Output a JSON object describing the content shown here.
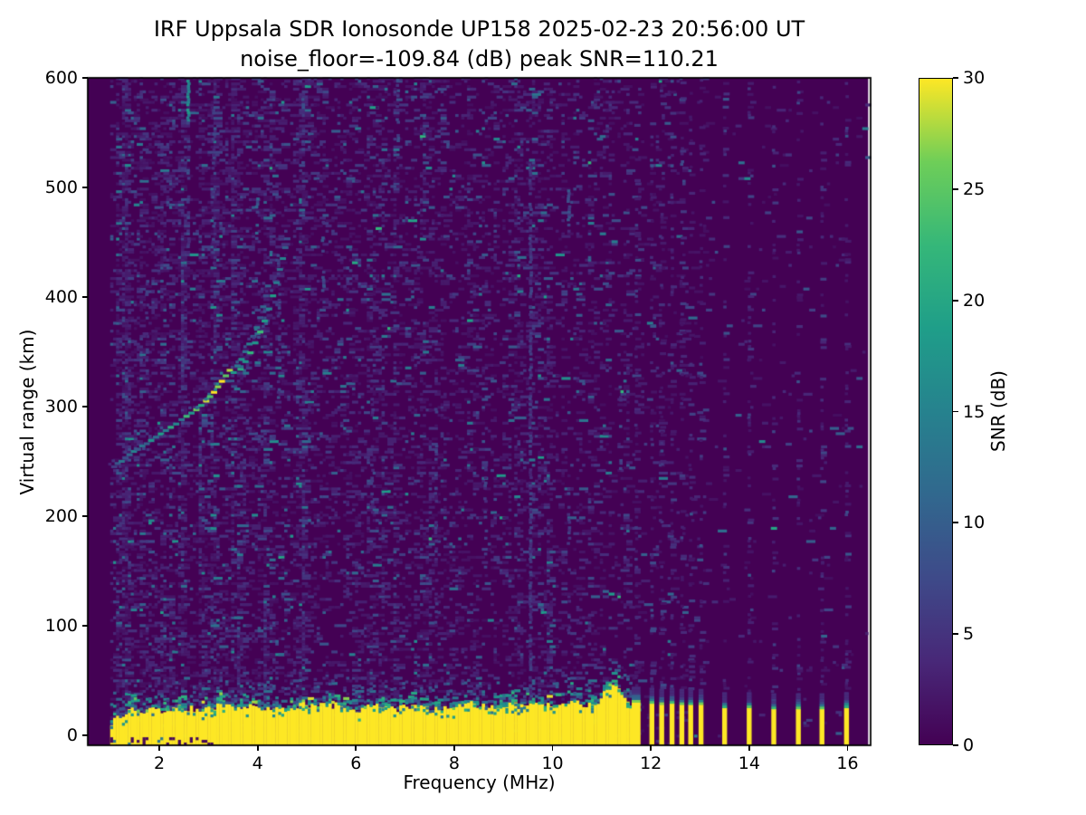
{
  "figure": {
    "title_line1": "IRF Uppsala SDR Ionosonde UP158 2025-02-23 20:56:00  UT",
    "title_line2": "noise_floor=-109.84 (dB) peak SNR=110.21",
    "xlabel": "Frequency (MHz)",
    "ylabel": "Virtual range (km)",
    "colorbar_label": "SNR (dB)"
  },
  "chart_data": {
    "type": "heatmap",
    "title": "IRF Uppsala SDR Ionosonde UP158 2025-02-23 20:56:00  UT",
    "subtitle": "noise_floor=-109.84 (dB) peak SNR=110.21",
    "xlabel": "Frequency (MHz)",
    "ylabel": "Virtual range (km)",
    "x_axis": {
      "range": [
        0.545,
        16.47
      ],
      "ticks": [
        2,
        4,
        6,
        8,
        10,
        12,
        14,
        16
      ]
    },
    "y_axis": {
      "range": [
        -9.1,
        600
      ],
      "ticks": [
        0,
        100,
        200,
        300,
        400,
        500,
        600
      ]
    },
    "colorbar": {
      "label": "SNR (dB)",
      "range": [
        0,
        30
      ],
      "ticks": [
        0,
        5,
        10,
        15,
        20,
        25,
        30
      ],
      "colormap": "viridis",
      "stops": [
        "#440154",
        "#482878",
        "#3e4a89",
        "#31688e",
        "#26828e",
        "#1f9e89",
        "#35b779",
        "#6ece58",
        "#fde725"
      ]
    },
    "data_extent": {
      "f_min": 1.0,
      "f_max": 16.42
    },
    "noise": {
      "seed": 1337,
      "cell_mhz": 0.06,
      "cell_km": 2.4,
      "snr_floor": 1.2,
      "snr_scale": 2.2,
      "region_density": [
        [
          1.0,
          2.5,
          0.32
        ],
        [
          2.5,
          5.0,
          0.26
        ],
        [
          5.0,
          8.0,
          0.21
        ],
        [
          8.0,
          10.0,
          0.17
        ],
        [
          10.0,
          11.62,
          0.13
        ],
        [
          11.62,
          13.1,
          0.05
        ],
        [
          13.1,
          16.42,
          0.012
        ]
      ]
    },
    "streaks": [
      {
        "f": 2.56,
        "r0": 560,
        "r1": 596,
        "density": 0.85,
        "snr": 16
      },
      {
        "f": 2.56,
        "r0": 440,
        "r1": 560,
        "density": 0.3,
        "snr": 6
      },
      {
        "f": 1.72,
        "r0": 250,
        "r1": 430,
        "density": 0.3,
        "snr": 5
      },
      {
        "f": 3.07,
        "r0": 430,
        "r1": 590,
        "density": 0.35,
        "snr": 6
      },
      {
        "f": 3.96,
        "r0": 450,
        "r1": 500,
        "density": 0.5,
        "snr": 9
      },
      {
        "f": 4.4,
        "r0": 300,
        "r1": 440,
        "density": 0.3,
        "snr": 6
      },
      {
        "f": 4.9,
        "r0": 500,
        "r1": 580,
        "density": 0.3,
        "snr": 6
      },
      {
        "f": 5.3,
        "r0": 400,
        "r1": 470,
        "density": 0.35,
        "snr": 7
      },
      {
        "f": 6.3,
        "r0": 200,
        "r1": 330,
        "density": 0.25,
        "snr": 5
      },
      {
        "f": 6.82,
        "r0": 520,
        "r1": 598,
        "density": 0.35,
        "snr": 6
      },
      {
        "f": 7.6,
        "r0": 90,
        "r1": 300,
        "density": 0.25,
        "snr": 5
      },
      {
        "f": 8.6,
        "r0": 150,
        "r1": 260,
        "density": 0.3,
        "snr": 5
      },
      {
        "f": 9.52,
        "r0": 30,
        "r1": 520,
        "density": 0.75,
        "snr": 5
      },
      {
        "f": 10.3,
        "r0": 455,
        "r1": 500,
        "density": 0.5,
        "snr": 7
      },
      {
        "f": 10.3,
        "r0": 90,
        "r1": 220,
        "density": 0.3,
        "snr": 5
      },
      {
        "f": 11.35,
        "r0": 240,
        "r1": 330,
        "density": 0.35,
        "snr": 6
      }
    ],
    "echo_trace": {
      "main": [
        [
          1.05,
          244,
          6
        ],
        [
          1.12,
          247,
          9
        ],
        [
          1.2,
          249,
          13
        ],
        [
          1.28,
          252,
          8
        ],
        [
          1.36,
          255,
          11
        ],
        [
          1.45,
          258,
          15
        ],
        [
          1.53,
          260,
          9
        ],
        [
          1.62,
          263,
          13
        ],
        [
          1.71,
          265,
          10
        ],
        [
          1.8,
          268,
          17
        ],
        [
          1.9,
          271,
          12
        ],
        [
          2.0,
          274,
          19
        ],
        [
          2.1,
          277,
          14
        ],
        [
          2.2,
          280,
          21
        ],
        [
          2.31,
          283,
          16
        ],
        [
          2.42,
          287,
          13
        ],
        [
          2.52,
          290,
          23
        ],
        [
          2.62,
          293,
          18
        ],
        [
          2.72,
          296,
          26
        ],
        [
          2.82,
          300,
          20
        ],
        [
          2.92,
          304,
          29
        ],
        [
          3.0,
          308,
          24
        ],
        [
          3.08,
          312,
          30
        ],
        [
          3.16,
          317,
          27
        ],
        [
          3.24,
          322,
          30
        ],
        [
          3.32,
          327,
          25
        ],
        [
          3.4,
          332,
          28
        ]
      ],
      "branch_o": [
        [
          3.48,
          330,
          18
        ],
        [
          3.56,
          336,
          14
        ],
        [
          3.64,
          342,
          17
        ],
        [
          3.72,
          349,
          12
        ],
        [
          3.8,
          356,
          15
        ],
        [
          3.88,
          363,
          10
        ],
        [
          3.95,
          371,
          13
        ],
        [
          4.02,
          380,
          9
        ],
        [
          4.08,
          390,
          11
        ],
        [
          4.14,
          400,
          8
        ],
        [
          4.18,
          409,
          10
        ]
      ],
      "branch_x": [
        [
          3.62,
          333,
          21
        ],
        [
          3.72,
          340,
          17
        ],
        [
          3.82,
          348,
          22
        ],
        [
          3.92,
          357,
          18
        ],
        [
          4.02,
          367,
          23
        ],
        [
          4.11,
          377,
          19
        ],
        [
          4.2,
          388,
          15
        ],
        [
          4.28,
          400,
          19
        ],
        [
          4.35,
          412,
          14
        ],
        [
          4.42,
          424,
          12
        ],
        [
          4.48,
          434,
          15
        ],
        [
          4.53,
          444,
          10
        ],
        [
          4.57,
          452,
          8
        ]
      ]
    },
    "ground_band": {
      "f_start": 1.0,
      "f_end": 11.62,
      "snr": 30,
      "jitter_km": 3.5,
      "top_profile": [
        [
          1.0,
          10
        ],
        [
          1.1,
          16
        ],
        [
          1.3,
          21
        ],
        [
          1.6,
          24
        ],
        [
          2.0,
          22
        ],
        [
          2.4,
          26
        ],
        [
          2.8,
          23
        ],
        [
          3.2,
          27
        ],
        [
          3.6,
          24
        ],
        [
          4.0,
          27
        ],
        [
          4.4,
          24
        ],
        [
          4.8,
          28
        ],
        [
          5.2,
          25
        ],
        [
          5.6,
          27
        ],
        [
          6.0,
          24
        ],
        [
          6.4,
          26
        ],
        [
          6.8,
          24
        ],
        [
          7.2,
          26
        ],
        [
          7.6,
          23
        ],
        [
          8.0,
          27
        ],
        [
          8.4,
          28
        ],
        [
          8.8,
          25
        ],
        [
          9.2,
          28
        ],
        [
          9.6,
          26
        ],
        [
          10.0,
          28
        ],
        [
          10.4,
          29
        ],
        [
          10.7,
          27
        ],
        [
          10.9,
          32
        ],
        [
          11.1,
          44
        ],
        [
          11.2,
          49
        ],
        [
          11.3,
          43
        ],
        [
          11.45,
          33
        ],
        [
          11.55,
          28
        ],
        [
          11.62,
          26
        ]
      ]
    },
    "pulse_bars": {
      "default_width_mhz": 0.1,
      "cap_extra_km": 7,
      "dot_column_density": 0.2,
      "bars": [
        {
          "f": 11.7,
          "top_km": 30,
          "width_mhz": 0.18
        },
        {
          "f": 12.02,
          "top_km": 29
        },
        {
          "f": 12.22,
          "top_km": 28
        },
        {
          "f": 12.43,
          "top_km": 29
        },
        {
          "f": 12.63,
          "top_km": 28
        },
        {
          "f": 12.81,
          "top_km": 28
        },
        {
          "f": 13.02,
          "top_km": 28
        },
        {
          "f": 13.5,
          "top_km": 25
        },
        {
          "f": 14.0,
          "top_km": 25
        },
        {
          "f": 14.5,
          "top_km": 24
        },
        {
          "f": 15.0,
          "top_km": 24
        },
        {
          "f": 15.48,
          "top_km": 24
        },
        {
          "f": 15.98,
          "top_km": 25
        }
      ]
    }
  }
}
